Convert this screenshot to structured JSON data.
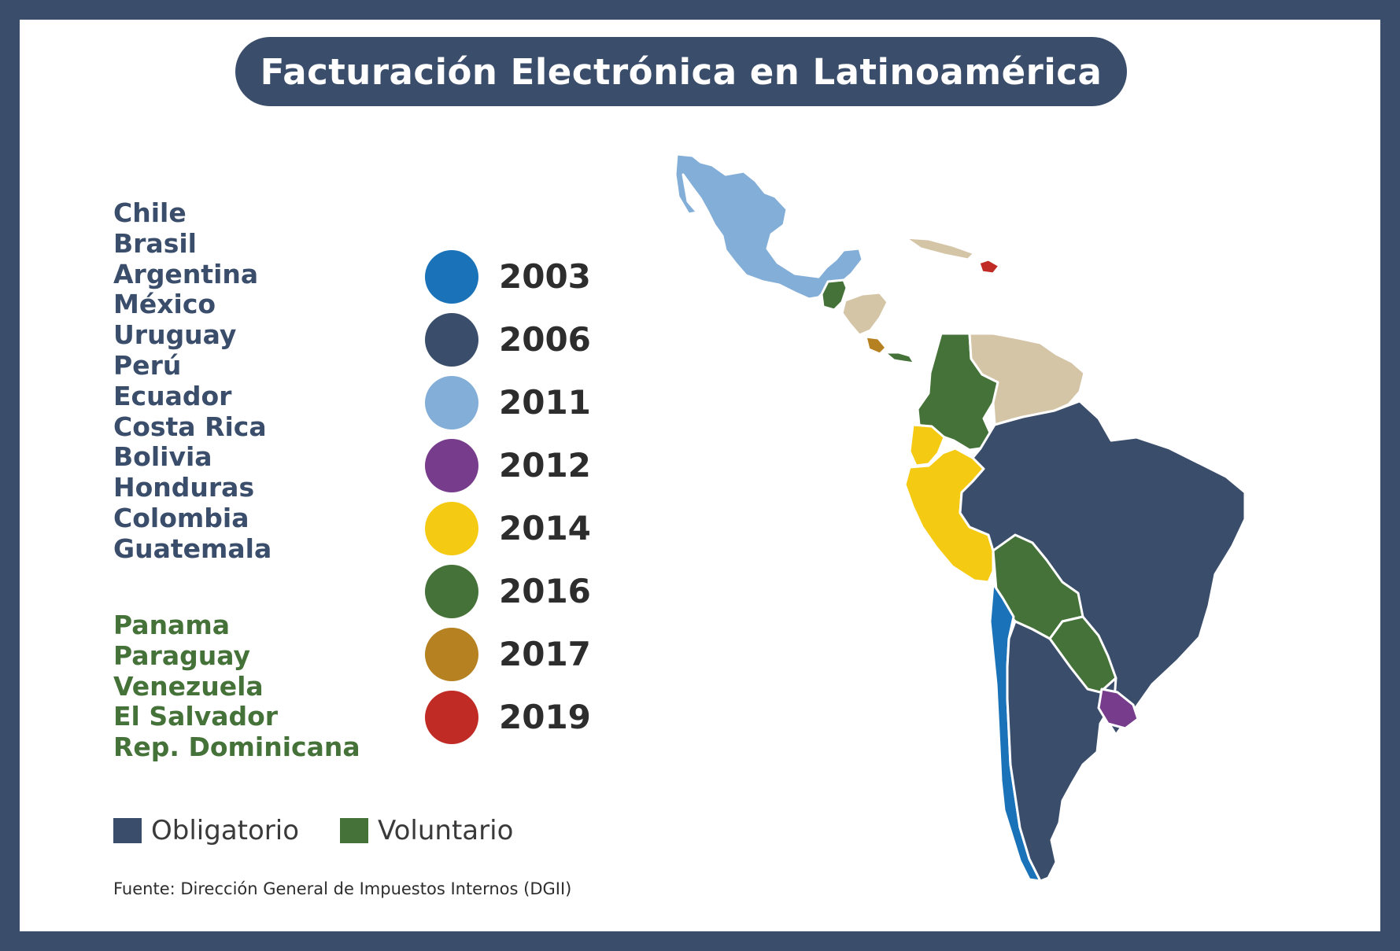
{
  "title": "Facturación Electrónica en Latinoamérica",
  "mandatory_countries": [
    "Chile",
    "Brasil",
    "Argentina",
    "México",
    "Uruguay",
    "Perú",
    "Ecuador",
    "Costa Rica",
    "Bolivia",
    "Honduras",
    "Colombia",
    "Guatemala"
  ],
  "voluntary_countries": [
    "Panama",
    "Paraguay",
    "Venezuela",
    "El Salvador",
    "Rep. Dominicana"
  ],
  "years": [
    {
      "year": "2003",
      "color": "#1a73b8"
    },
    {
      "year": "2006",
      "color": "#3a4d6b"
    },
    {
      "year": "2011",
      "color": "#83aed8"
    },
    {
      "year": "2012",
      "color": "#773c8c"
    },
    {
      "year": "2014",
      "color": "#f5ca12"
    },
    {
      "year": "2016",
      "color": "#457238"
    },
    {
      "year": "2017",
      "color": "#b58121"
    },
    {
      "year": "2019",
      "color": "#c02c25"
    }
  ],
  "legend": [
    {
      "label": "Obligatorio",
      "color": "#3a4d6b"
    },
    {
      "label": "Voluntario",
      "color": "#457238"
    }
  ],
  "map_regions": [
    {
      "name": "mexico",
      "color": "#83aed8"
    },
    {
      "name": "guatemala",
      "color": "#457238"
    },
    {
      "name": "honduras",
      "color": "#d4c5a7"
    },
    {
      "name": "costa-rica",
      "color": "#b58121"
    },
    {
      "name": "panama",
      "color": "#457238"
    },
    {
      "name": "dominican-republic",
      "color": "#c02c25"
    },
    {
      "name": "caribbean",
      "color": "#d4c5a7"
    },
    {
      "name": "colombia",
      "color": "#457238"
    },
    {
      "name": "venezuela",
      "color": "#d4c5a7"
    },
    {
      "name": "ecuador",
      "color": "#f5ca12"
    },
    {
      "name": "peru",
      "color": "#f5ca12"
    },
    {
      "name": "brasil",
      "color": "#3a4d6b"
    },
    {
      "name": "bolivia",
      "color": "#457238"
    },
    {
      "name": "paraguay",
      "color": "#457238"
    },
    {
      "name": "chile",
      "color": "#1a73b8"
    },
    {
      "name": "argentina",
      "color": "#3a4d6b"
    },
    {
      "name": "uruguay",
      "color": "#773c8c"
    }
  ],
  "source": "Fuente: Dirección General de Impuestos Internos (DGII)"
}
